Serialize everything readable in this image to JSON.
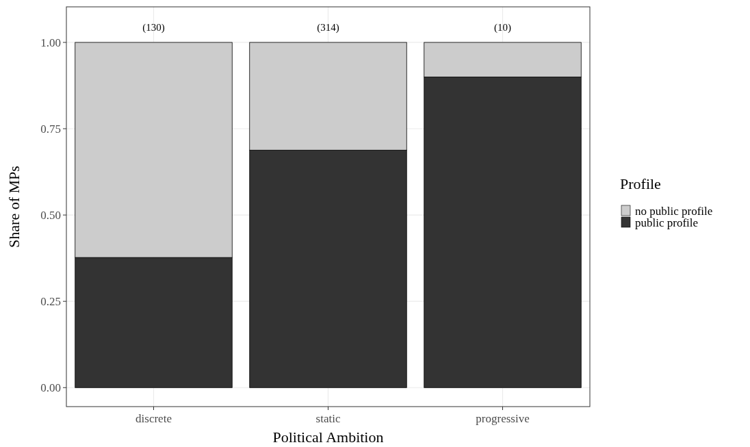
{
  "chart_data": {
    "type": "bar",
    "stacked": true,
    "xlabel": "Political Ambition",
    "ylabel": "Share of MPs",
    "legend_title": "Profile",
    "legend": "right",
    "grid": true,
    "categories": [
      "discrete",
      "static",
      "progressive"
    ],
    "series": [
      {
        "name": "public profile",
        "color": "#333333",
        "values": [
          0.377,
          0.688,
          0.9
        ]
      },
      {
        "name": "no public profile",
        "color": "#cccccc",
        "values": [
          0.623,
          0.312,
          0.1
        ]
      }
    ],
    "ylim": [
      -0.055,
      1.103
    ],
    "yticks": [
      {
        "value": 0,
        "label": "0.00"
      },
      {
        "value": 0.25,
        "label": "0.25"
      },
      {
        "value": 0.5,
        "label": "0.50"
      },
      {
        "value": 0.75,
        "label": "0.75"
      },
      {
        "value": 1,
        "label": "1.00"
      }
    ],
    "annotations": [
      {
        "text": "(130)",
        "x": "discrete",
        "y": 1
      },
      {
        "text": "(314)",
        "x": "static",
        "y": 1
      },
      {
        "text": "(10)",
        "x": "progressive",
        "y": 1
      }
    ]
  }
}
